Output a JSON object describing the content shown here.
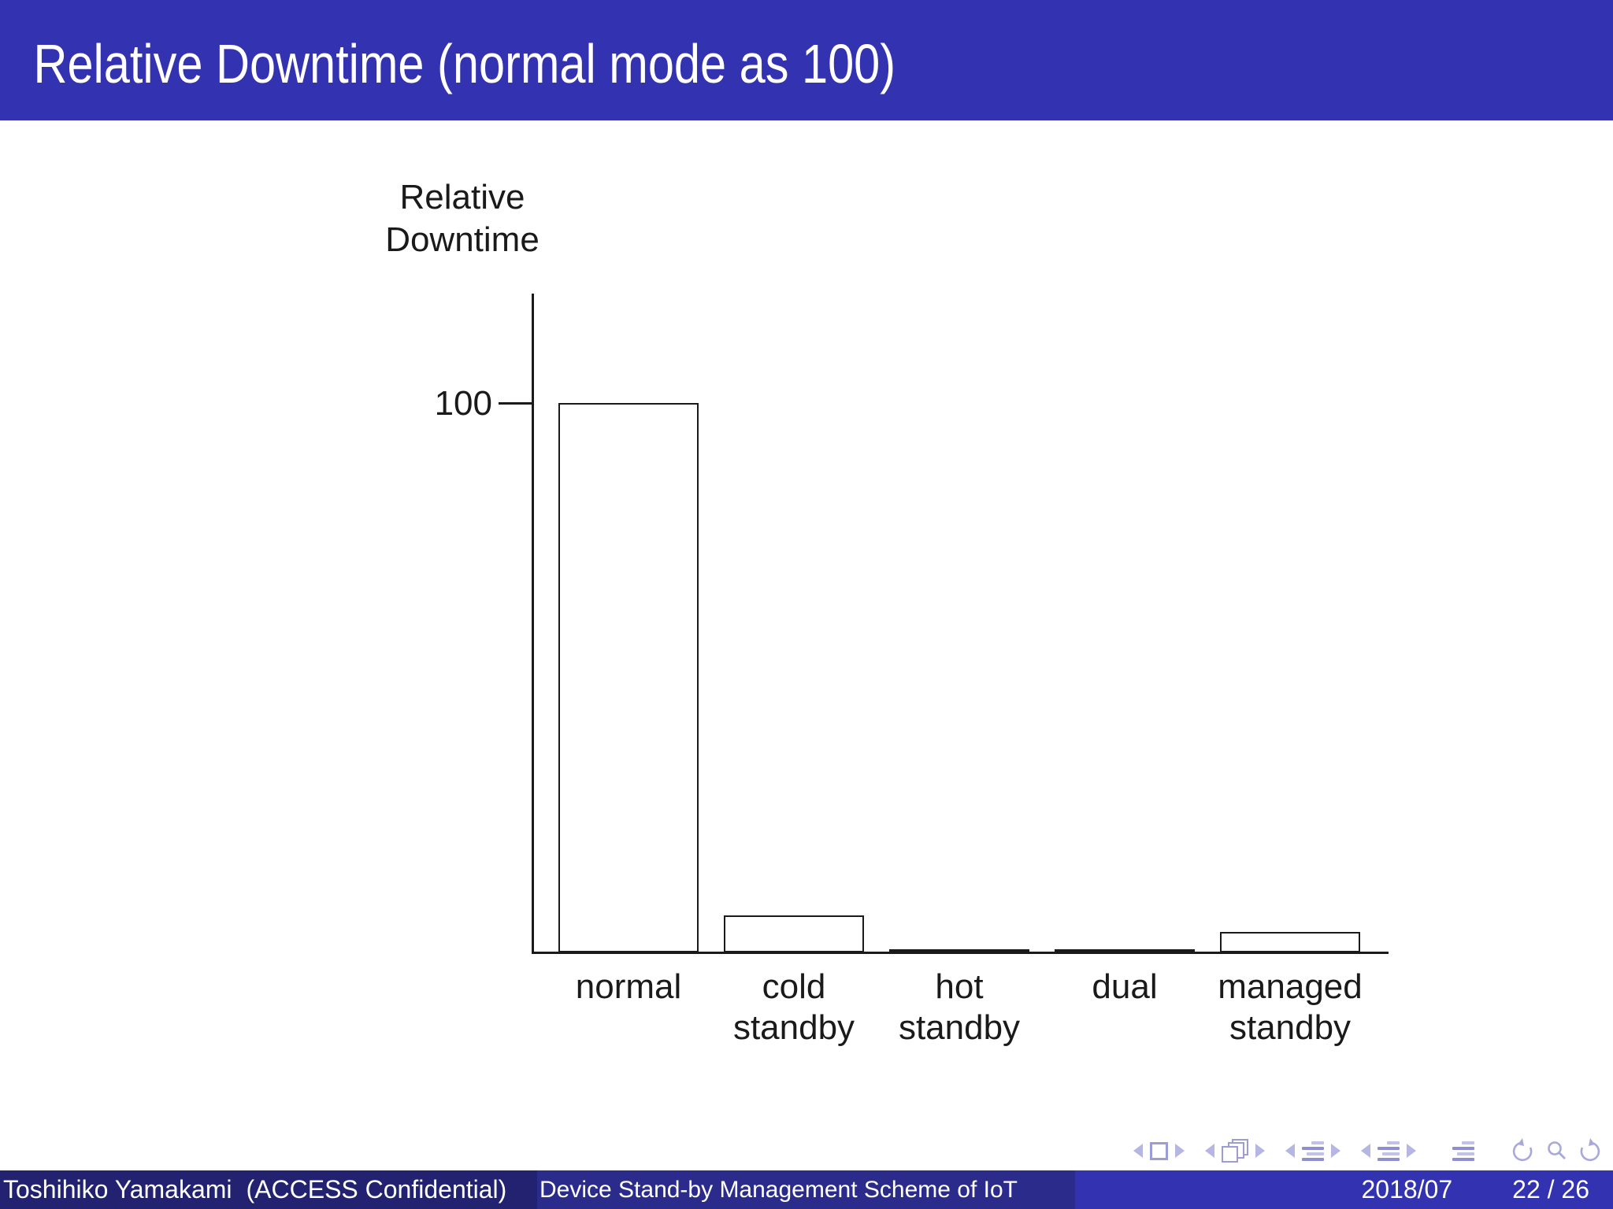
{
  "slide": {
    "title": "Relative Downtime (normal mode as 100)"
  },
  "chart_data": {
    "type": "bar",
    "title": "Relative Downtime (normal mode as 100)",
    "ylabel": "Relative Downtime",
    "ylabel_lines": [
      "Relative",
      "Downtime"
    ],
    "xlabel": "",
    "categories": [
      "normal",
      "cold standby",
      "hot standby",
      "dual",
      "managed standby"
    ],
    "category_lines": [
      [
        "normal"
      ],
      [
        "cold",
        "standby"
      ],
      [
        "hot",
        "standby"
      ],
      [
        "dual"
      ],
      [
        "managed",
        "standby"
      ]
    ],
    "values": [
      100,
      6.7,
      0.5,
      0.5,
      3.7
    ],
    "yticks": [
      {
        "value": 100,
        "label": "100"
      }
    ],
    "ylim": [
      0,
      120
    ],
    "grid": false,
    "legend": false,
    "bar_fill": "#ffffff",
    "bar_stroke": "#1a1a1a",
    "axis_color": "#1a1a1a"
  },
  "nav": {
    "icons": [
      "slide-back-icon",
      "slide-icon",
      "slide-forward-icon",
      "frame-back-icon",
      "frame-icon",
      "frame-forward-icon",
      "subsection-back-icon",
      "subsection-icon",
      "subsection-forward-icon",
      "section-back-icon",
      "section-icon",
      "section-forward-icon",
      "appendix-icon",
      "go-back-icon",
      "search-icon",
      "go-forward-icon"
    ],
    "icon_color": "#9c9cd6"
  },
  "footer": {
    "author": "Toshihiko Yamakami",
    "institute": "(ACCESS Confidential)",
    "title": "Device Stand-by Management Scheme of IoT",
    "date": "2018/07",
    "page": "22 / 26"
  },
  "colors": {
    "header_bg": "#3333b2",
    "footer_left_bg": "#222270",
    "footer_mid_bg": "#2b2b8c",
    "footer_right_bg": "#3333b2",
    "text_on_blue": "#ffffff",
    "chart_ink": "#1a1a1a"
  }
}
